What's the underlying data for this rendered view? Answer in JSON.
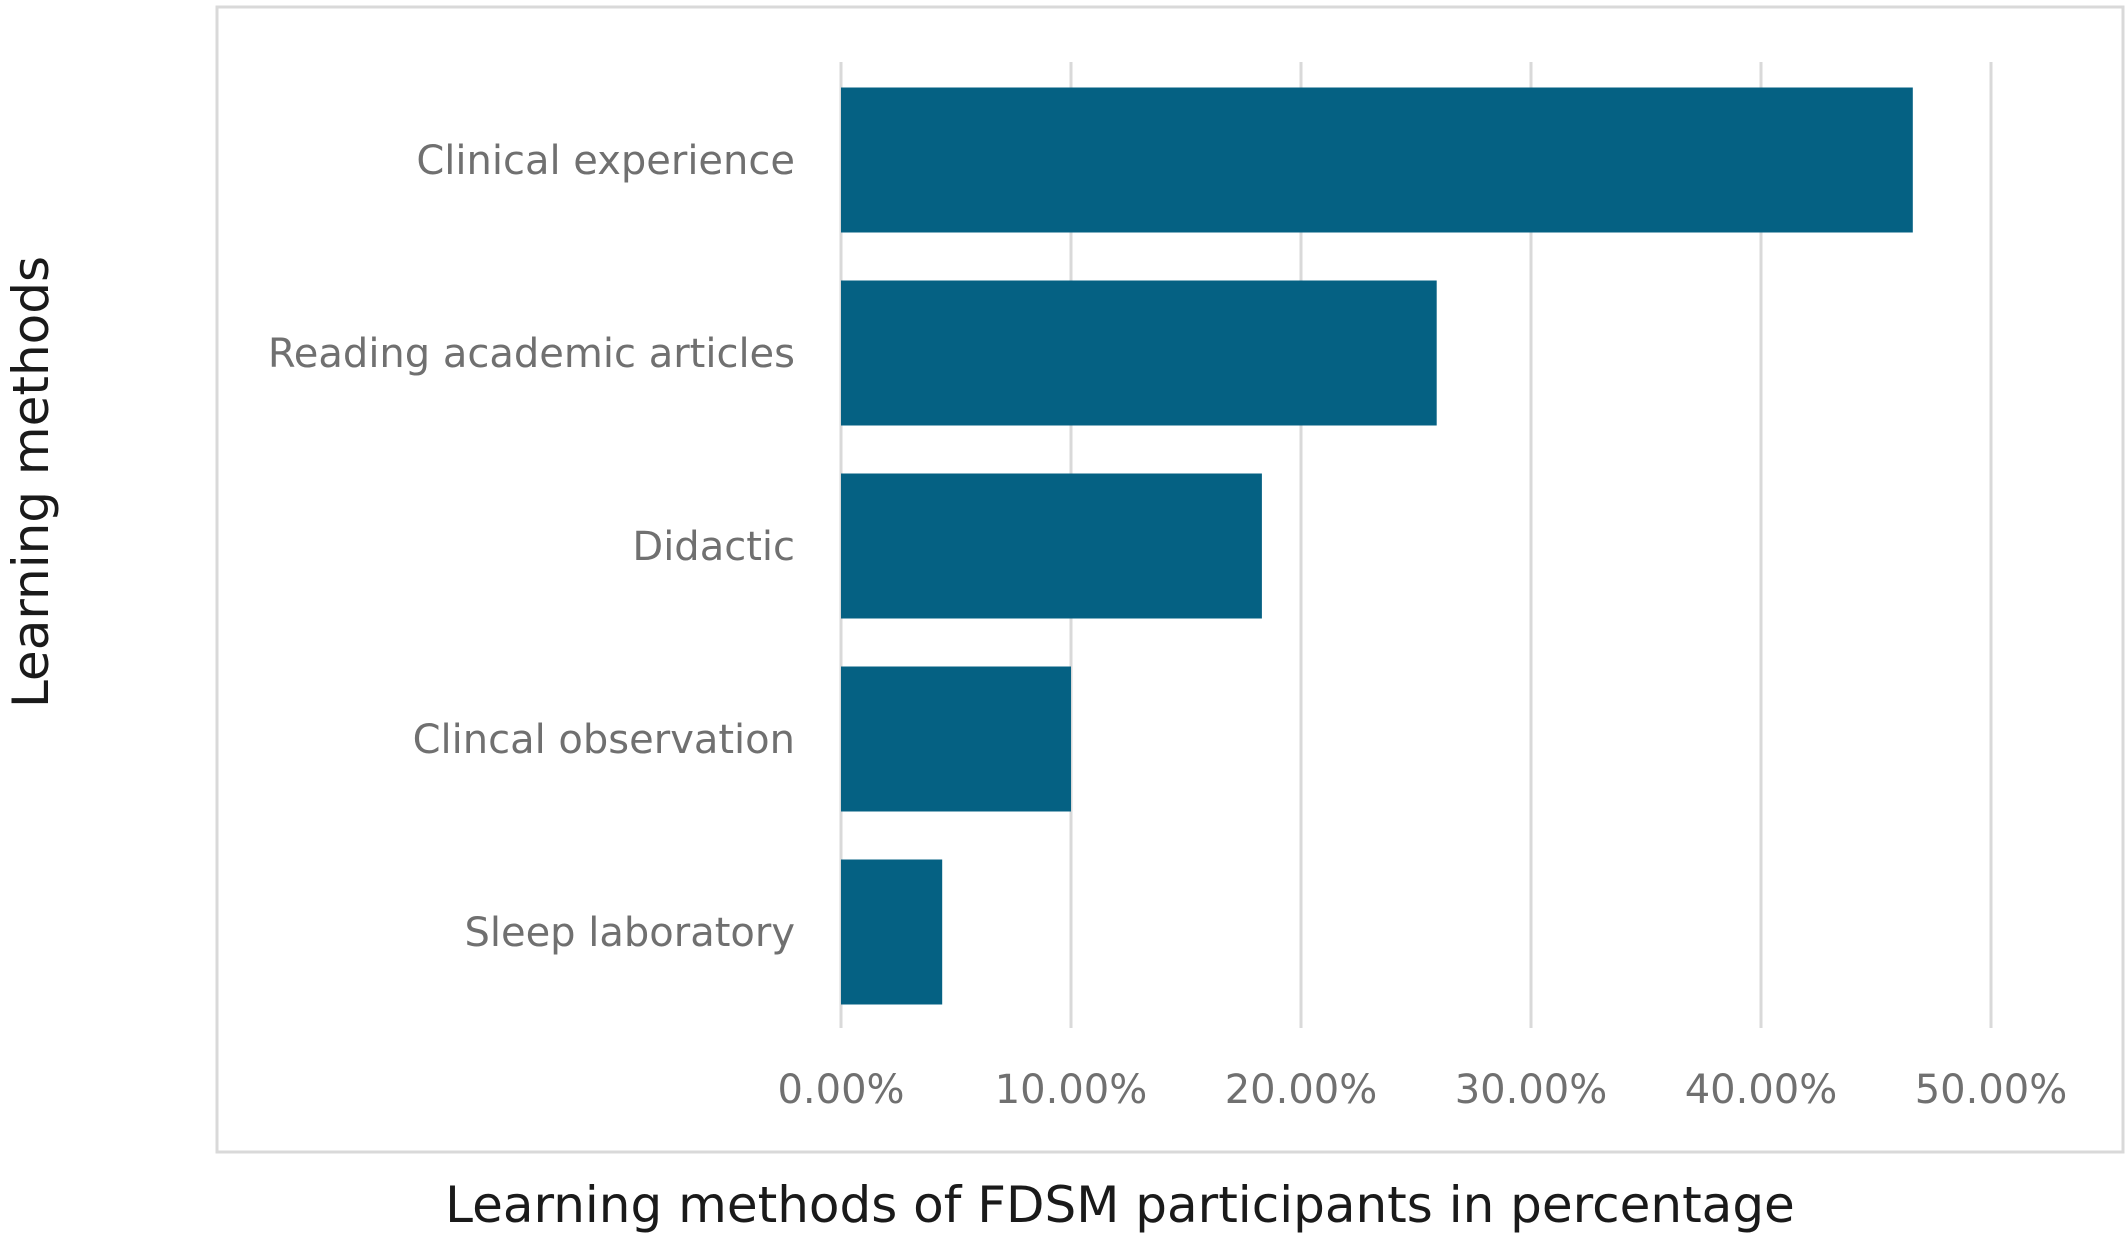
{
  "chart_data": {
    "type": "bar",
    "orientation": "horizontal",
    "categories": [
      "Clinical experience",
      "Reading academic articles",
      "Didactic",
      "Clincal observation",
      "Sleep laboratory"
    ],
    "values": [
      46.6,
      25.9,
      18.3,
      10.0,
      4.4
    ],
    "xlabel": "Learning methods of FDSM participants in percentage",
    "ylabel": "Learning methods",
    "xlim": [
      0,
      50
    ],
    "x_ticks": [
      0,
      10,
      20,
      30,
      40,
      50
    ],
    "x_tick_labels": [
      "0.00%",
      "10.00%",
      "20.00%",
      "30.00%",
      "40.00%",
      "50.00%"
    ],
    "grid": "vertical",
    "legend": "none"
  },
  "colors": {
    "bar": "#056183",
    "grid": "#d9d9d9",
    "frame": "#d9d9d9",
    "label": "#707070",
    "title": "#1a1a1a"
  }
}
